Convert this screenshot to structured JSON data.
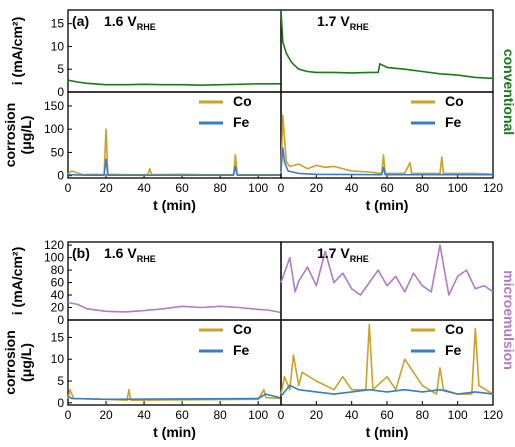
{
  "colors": {
    "Co": "#c9a227",
    "Fe": "#3b7cc4",
    "conventional": "#1a7a1a",
    "microemulsion": "#b07cc6",
    "axis": "#000000"
  },
  "chart_data": [
    {
      "type": "line",
      "panel_label": "(a)",
      "side": "left",
      "label": "1.6 V",
      "label_sub": "RHE",
      "row": "current",
      "ylabel": "i (mA/cm²)",
      "ylim": [
        0,
        18
      ],
      "yticks": [
        "0",
        "5",
        "10",
        "15"
      ],
      "xlim": [
        0,
        112
      ],
      "series": [
        {
          "name": "conventional",
          "color": "#1a7a1a",
          "x": [
            0,
            5,
            10,
            20,
            30,
            40,
            50,
            60,
            70,
            80,
            90,
            100,
            112
          ],
          "y": [
            2.6,
            2.2,
            1.9,
            1.6,
            1.6,
            1.7,
            1.6,
            1.6,
            1.5,
            1.6,
            1.7,
            1.8,
            1.8
          ]
        }
      ]
    },
    {
      "type": "line",
      "side": "right",
      "label": "1.7 V",
      "label_sub": "RHE",
      "row": "current",
      "side_label": "conventional",
      "ylim": [
        0,
        18
      ],
      "xlim": [
        0,
        120
      ],
      "series": [
        {
          "name": "conventional",
          "color": "#1a7a1a",
          "x": [
            0,
            1,
            3,
            6,
            10,
            15,
            20,
            30,
            40,
            50,
            55,
            56,
            60,
            70,
            80,
            90,
            100,
            110,
            120
          ],
          "y": [
            18,
            11,
            8.5,
            6.5,
            5,
            4.5,
            4.3,
            4.3,
            4.2,
            4.3,
            4.3,
            6.2,
            5.4,
            5.0,
            4.5,
            4.0,
            3.7,
            3.2,
            3.0
          ]
        }
      ]
    },
    {
      "type": "line",
      "side": "left",
      "row": "corrosion",
      "ylabel": "corrosion",
      "ylabel2": "(μg/L)",
      "ylim": [
        -5,
        180
      ],
      "yticks": [
        "0",
        "50",
        "100",
        "150"
      ],
      "xlim": [
        0,
        112
      ],
      "xticks": [
        "0",
        "20",
        "40",
        "60",
        "80",
        "100"
      ],
      "xlabel": "t (min)",
      "legend": [
        "Co",
        "Fe"
      ],
      "series": [
        {
          "name": "Co",
          "color": "#c9a227",
          "x": [
            0,
            2,
            8,
            15,
            19,
            20,
            21,
            30,
            42,
            43,
            44,
            60,
            70,
            80,
            87,
            88,
            89,
            100,
            112
          ],
          "y": [
            4,
            10,
            2,
            3,
            2,
            100,
            3,
            2,
            2,
            15,
            2,
            3,
            2,
            2,
            2,
            45,
            2,
            2,
            2
          ]
        },
        {
          "name": "Fe",
          "color": "#3b7cc4",
          "x": [
            0,
            10,
            19,
            20,
            21,
            40,
            60,
            80,
            87,
            88,
            89,
            112
          ],
          "y": [
            2,
            1,
            1,
            35,
            1,
            1,
            1,
            1,
            1,
            20,
            1,
            1
          ]
        }
      ]
    },
    {
      "type": "line",
      "side": "right",
      "row": "corrosion",
      "ylim": [
        -5,
        180
      ],
      "xlim": [
        0,
        120
      ],
      "xticks": [
        "0",
        "20",
        "40",
        "60",
        "80",
        "100",
        "120"
      ],
      "xlabel": "t (min)",
      "legend": [
        "Co",
        "Fe"
      ],
      "series": [
        {
          "name": "Co",
          "color": "#c9a227",
          "x": [
            0,
            1,
            2,
            3,
            5,
            10,
            15,
            20,
            25,
            30,
            40,
            50,
            57,
            58,
            59,
            70,
            73,
            74,
            80,
            90,
            91,
            92,
            100,
            110,
            120
          ],
          "y": [
            5,
            130,
            80,
            30,
            20,
            25,
            15,
            22,
            18,
            20,
            10,
            8,
            5,
            45,
            5,
            5,
            28,
            5,
            5,
            5,
            40,
            5,
            5,
            5,
            3
          ]
        },
        {
          "name": "Fe",
          "color": "#3b7cc4",
          "x": [
            0,
            1,
            2,
            4,
            10,
            20,
            57,
            58,
            59,
            120
          ],
          "y": [
            10,
            60,
            30,
            10,
            5,
            3,
            2,
            18,
            2,
            2
          ]
        }
      ]
    },
    {
      "type": "line",
      "panel_label": "(b)",
      "side": "left",
      "label": "1.6 V",
      "label_sub": "RHE",
      "row": "current",
      "ylabel": "i (mA/cm²)",
      "ylim": [
        0,
        125
      ],
      "yticks": [
        "0",
        "20",
        "40",
        "60",
        "80",
        "100",
        "120"
      ],
      "xlim": [
        0,
        112
      ],
      "series": [
        {
          "name": "microemulsion",
          "color": "#b07cc6",
          "x": [
            0,
            5,
            10,
            20,
            30,
            40,
            50,
            60,
            70,
            80,
            90,
            100,
            105,
            112
          ],
          "y": [
            28,
            25,
            18,
            14,
            13,
            15,
            18,
            22,
            20,
            22,
            20,
            17,
            16,
            12
          ]
        }
      ]
    },
    {
      "type": "line",
      "side": "right",
      "label": "1.7 V",
      "label_sub": "RHE",
      "row": "current",
      "side_label": "microemulsion",
      "ylim": [
        0,
        125
      ],
      "xlim": [
        0,
        120
      ],
      "series": [
        {
          "name": "microemulsion",
          "color": "#b07cc6",
          "x": [
            0,
            5,
            8,
            10,
            15,
            20,
            25,
            30,
            35,
            40,
            45,
            50,
            55,
            60,
            65,
            70,
            75,
            80,
            85,
            90,
            95,
            100,
            105,
            110,
            115,
            120
          ],
          "y": [
            60,
            100,
            45,
            62,
            85,
            55,
            110,
            60,
            75,
            50,
            40,
            60,
            80,
            55,
            70,
            45,
            75,
            55,
            45,
            120,
            40,
            70,
            80,
            50,
            55,
            45
          ]
        }
      ]
    },
    {
      "type": "line",
      "side": "left",
      "row": "corrosion",
      "ylabel": "corrosion",
      "ylabel2": "(μg/L)",
      "ylim": [
        -0.5,
        19
      ],
      "yticks": [
        "0",
        "5",
        "10",
        "15"
      ],
      "xlim": [
        0,
        112
      ],
      "xticks": [
        "0",
        "20",
        "40",
        "60",
        "80",
        "100"
      ],
      "xlabel": "t (min)",
      "legend": [
        "Co",
        "Fe"
      ],
      "series": [
        {
          "name": "Co",
          "color": "#c9a227",
          "x": [
            0,
            1,
            3,
            20,
            31,
            32,
            33,
            60,
            100,
            103,
            104,
            112
          ],
          "y": [
            1,
            3,
            1,
            0.8,
            0.6,
            3,
            0.6,
            0.7,
            0.8,
            3,
            1.2,
            1
          ]
        },
        {
          "name": "Fe",
          "color": "#3b7cc4",
          "x": [
            0,
            2,
            20,
            60,
            100,
            104,
            112
          ],
          "y": [
            1.5,
            1,
            0.8,
            0.9,
            1,
            2,
            1.1
          ]
        }
      ]
    },
    {
      "type": "line",
      "side": "right",
      "row": "corrosion",
      "ylim": [
        -0.5,
        19
      ],
      "xlim": [
        0,
        120
      ],
      "xticks": [
        "0",
        "20",
        "40",
        "60",
        "80",
        "100",
        "120"
      ],
      "xlabel": "t (min)",
      "legend": [
        "Co",
        "Fe"
      ],
      "series": [
        {
          "name": "Co",
          "color": "#c9a227",
          "x": [
            0,
            2,
            5,
            7,
            10,
            12,
            20,
            30,
            35,
            40,
            48,
            50,
            52,
            60,
            65,
            70,
            80,
            88,
            90,
            92,
            100,
            108,
            110,
            112,
            120
          ],
          "y": [
            2,
            6,
            3,
            11,
            4,
            7,
            5,
            3,
            6,
            3,
            3,
            18,
            3,
            6,
            3,
            10,
            4,
            2,
            8,
            3,
            2,
            2,
            17,
            4,
            2
          ]
        },
        {
          "name": "Fe",
          "color": "#3b7cc4",
          "x": [
            0,
            5,
            10,
            20,
            30,
            40,
            50,
            60,
            70,
            80,
            90,
            100,
            110,
            120
          ],
          "y": [
            1.5,
            4,
            3,
            2.5,
            2,
            2.5,
            3,
            2.5,
            3,
            2.5,
            3,
            2,
            2.5,
            2
          ]
        }
      ]
    }
  ]
}
